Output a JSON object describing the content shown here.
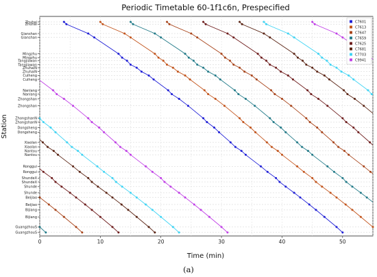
{
  "chart_data": {
    "type": "line",
    "title": "Periodic Timetable 60-1f1c6n, Prespecified",
    "xlabel": "Time (min)",
    "ylabel": "Station",
    "caption": "(a)",
    "xlim": [
      0,
      55
    ],
    "x_ticks": [
      0,
      10,
      20,
      30,
      40,
      50
    ],
    "grid": true,
    "legend_position": "top-right",
    "stations": [
      {
        "name": "Zhuhai",
        "y": 0
      },
      {
        "name": "Zhuhai",
        "y": 3
      },
      {
        "name": "Gianshan",
        "y": 15
      },
      {
        "name": "Gianshan",
        "y": 20
      },
      {
        "name": "Mingzhu",
        "y": 41
      },
      {
        "name": "Mingzhu",
        "y": 46
      },
      {
        "name": "Tangjiawan",
        "y": 50
      },
      {
        "name": "Tangjiawan",
        "y": 55
      },
      {
        "name": "ZhuhaiN",
        "y": 59
      },
      {
        "name": "ZhuhaiN",
        "y": 64
      },
      {
        "name": "Cuiheng",
        "y": 69
      },
      {
        "name": "Cuiheng",
        "y": 74
      },
      {
        "name": "Nanlang",
        "y": 88
      },
      {
        "name": "Nanlang",
        "y": 93
      },
      {
        "name": "Zhongshan",
        "y": 99
      },
      {
        "name": "Zhongshan",
        "y": 108
      },
      {
        "name": "ZhongshanN",
        "y": 124
      },
      {
        "name": "ZhongshanN",
        "y": 129
      },
      {
        "name": "Dongsheng",
        "y": 136
      },
      {
        "name": "Dongsheng",
        "y": 142
      },
      {
        "name": "Xiaolan",
        "y": 155
      },
      {
        "name": "Xiaolan",
        "y": 161
      },
      {
        "name": "Nantou",
        "y": 166
      },
      {
        "name": "Nantou",
        "y": 171
      },
      {
        "name": "Ronggui",
        "y": 186
      },
      {
        "name": "Ronggui",
        "y": 193
      },
      {
        "name": "ShundeX",
        "y": 201
      },
      {
        "name": "ShundeX",
        "y": 206
      },
      {
        "name": "Shunde",
        "y": 212
      },
      {
        "name": "Shunde",
        "y": 220
      },
      {
        "name": "Beijiao",
        "y": 226
      },
      {
        "name": "Beijiao",
        "y": 235
      },
      {
        "name": "Bijiang",
        "y": 242
      },
      {
        "name": "Bijiang",
        "y": 251
      },
      {
        "name": "GuangzhouS",
        "y": 264
      },
      {
        "name": "GuangzhouS",
        "y": 271
      }
    ],
    "series": [
      {
        "name": "C7601",
        "color": "#1f1fd6",
        "offset": 4,
        "trace": true
      },
      {
        "name": "C7613",
        "color": "#c2541c",
        "offset": 10,
        "trace": true
      },
      {
        "name": "C7647",
        "color": "#a8441a",
        "offset": 21,
        "trace": true
      },
      {
        "name": "C7659",
        "color": "#227a88",
        "offset": 15,
        "trace": true
      },
      {
        "name": "C7625",
        "color": "#6e1d1d",
        "offset": 27,
        "trace": true
      },
      {
        "name": "C7681",
        "color": "#5a2414",
        "offset": 33,
        "trace": true
      },
      {
        "name": "C7703",
        "color": "#40d4f4",
        "offset": 37,
        "trace": true
      },
      {
        "name": "C9941",
        "color": "#c040e6",
        "offset": 45,
        "trace": true
      }
    ]
  }
}
